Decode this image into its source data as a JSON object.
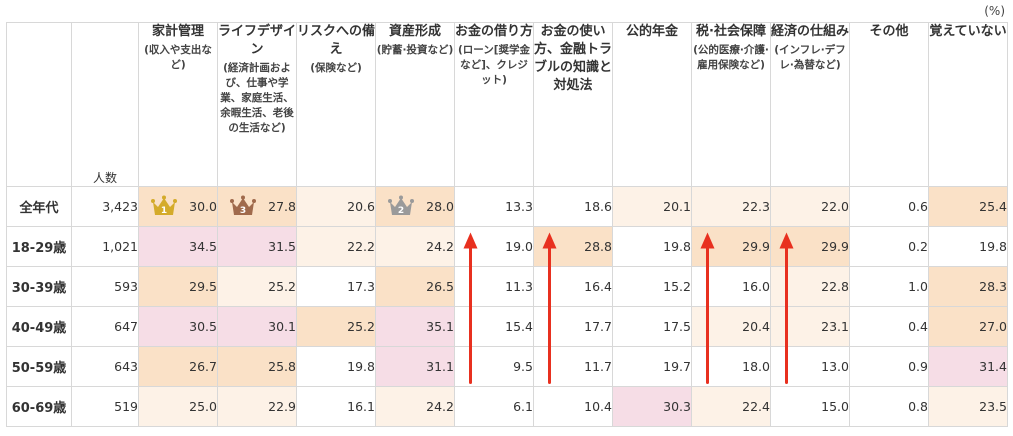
{
  "unit_label": "(%)",
  "n_header": "人数",
  "columns": [
    {
      "main": "家計管理",
      "sub": "(収入や支出など)"
    },
    {
      "main": "ライフデザイン",
      "sub": "(経済計画および、仕事や学業、家庭生活、余暇生活、老後の生活など)"
    },
    {
      "main": "リスクへの備え",
      "sub": "(保険など)"
    },
    {
      "main": "資産形成",
      "sub": "(貯蓄·投資など)"
    },
    {
      "main": "お金の借り方",
      "sub": "(ローン[奨学金など]、クレジット)"
    },
    {
      "main": "お金の使い方、金融トラブルの知識と対処法",
      "sub": ""
    },
    {
      "main": "公的年金",
      "sub": ""
    },
    {
      "main": "税·社会保障",
      "sub": "(公的医療·介護·雇用保険など)"
    },
    {
      "main": "経済の仕組み",
      "sub": "(インフレ·デフレ·為替など)"
    },
    {
      "main": "その他",
      "sub": ""
    },
    {
      "main": "覚えていない",
      "sub": ""
    }
  ],
  "colors": {
    "pink": "#f6dde6",
    "orange": "#fae1c7",
    "cream": "#fdf2e7",
    "arrow": "#e8301f",
    "gold": "#d4ab2a",
    "bronze": "#a06a4c",
    "silver": "#9a9a9a"
  },
  "chart_data": {
    "type": "table",
    "rows": [
      {
        "label": "全年代",
        "n": "3,423",
        "values": [
          "30.0",
          "27.8",
          "20.6",
          "28.0",
          "13.3",
          "18.6",
          "20.1",
          "22.3",
          "22.0",
          "0.6",
          "25.4"
        ],
        "shading": [
          "orange",
          "orange",
          "cream",
          "orange",
          "white",
          "white",
          "cream",
          "cream",
          "cream",
          "white",
          "orange"
        ],
        "ranks": [
          1,
          3,
          null,
          2,
          null,
          null,
          null,
          null,
          null,
          null,
          null
        ]
      },
      {
        "label": "18-29歳",
        "n": "1,021",
        "values": [
          "34.5",
          "31.5",
          "22.2",
          "24.2",
          "19.0",
          "28.8",
          "19.8",
          "29.9",
          "29.9",
          "0.2",
          "19.8"
        ],
        "shading": [
          "pink",
          "pink",
          "cream",
          "cream",
          "white",
          "orange",
          "white",
          "orange",
          "orange",
          "white",
          "white"
        ],
        "ranks": []
      },
      {
        "label": "30-39歳",
        "n": "593",
        "values": [
          "29.5",
          "25.2",
          "17.3",
          "26.5",
          "11.3",
          "16.4",
          "15.2",
          "16.0",
          "22.8",
          "1.0",
          "28.3"
        ],
        "shading": [
          "orange",
          "cream",
          "white",
          "orange",
          "white",
          "white",
          "white",
          "white",
          "cream",
          "white",
          "orange"
        ],
        "ranks": []
      },
      {
        "label": "40-49歳",
        "n": "647",
        "values": [
          "30.5",
          "30.1",
          "25.2",
          "35.1",
          "15.4",
          "17.7",
          "17.5",
          "20.4",
          "23.1",
          "0.4",
          "27.0"
        ],
        "shading": [
          "pink",
          "pink",
          "orange",
          "pink",
          "white",
          "white",
          "white",
          "cream",
          "cream",
          "white",
          "orange"
        ],
        "ranks": []
      },
      {
        "label": "50-59歳",
        "n": "643",
        "values": [
          "26.7",
          "25.8",
          "19.8",
          "31.1",
          "9.5",
          "11.7",
          "19.7",
          "18.0",
          "13.0",
          "0.9",
          "31.4"
        ],
        "shading": [
          "orange",
          "orange",
          "white",
          "pink",
          "white",
          "white",
          "white",
          "white",
          "white",
          "white",
          "pink"
        ],
        "ranks": []
      },
      {
        "label": "60-69歳",
        "n": "519",
        "values": [
          "25.0",
          "22.9",
          "16.1",
          "24.2",
          "6.1",
          "10.4",
          "30.3",
          "22.4",
          "15.0",
          "0.8",
          "23.5"
        ],
        "shading": [
          "cream",
          "cream",
          "white",
          "cream",
          "white",
          "white",
          "pink",
          "cream",
          "white",
          "white",
          "cream"
        ],
        "ranks": []
      }
    ],
    "annotations": {
      "up_arrows_columns": [
        "お金の借り方",
        "お金の使い方、金融トラブルの知識と対処法",
        "税·社会保障",
        "経済の仕組み"
      ],
      "arrow_span": "50-59歳 → 18-29歳"
    }
  }
}
